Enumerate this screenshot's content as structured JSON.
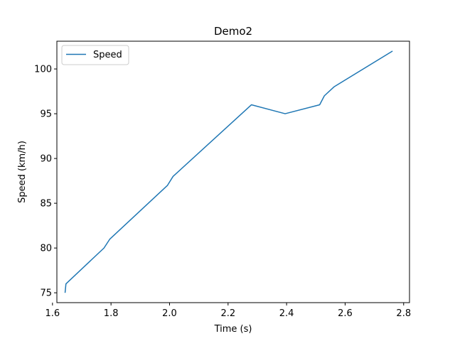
{
  "chart_data": {
    "type": "line",
    "title": "Demo2",
    "xlabel": "Time (s)",
    "ylabel": "Speed (km/h)",
    "xlim": [
      1.615,
      2.82
    ],
    "ylim": [
      73.9,
      103.1
    ],
    "xticks": [
      1.6,
      1.8,
      2.0,
      2.2,
      2.4,
      2.6,
      2.8
    ],
    "xtick_labels": [
      "1.6",
      "1.8",
      "2.0",
      "2.2",
      "2.4",
      "2.6",
      "2.8"
    ],
    "yticks": [
      75,
      80,
      85,
      90,
      95,
      100
    ],
    "ytick_labels": [
      "75",
      "80",
      "85",
      "90",
      "95",
      "100"
    ],
    "grid": false,
    "legend": "upper-left",
    "series": [
      {
        "name": "Speed",
        "color": "#1f77b4",
        "x": [
          1.643,
          1.646,
          1.776,
          1.796,
          1.993,
          2.012,
          2.28,
          2.395,
          2.513,
          2.529,
          2.562,
          2.762
        ],
        "y": [
          75,
          76,
          80,
          81,
          87,
          88,
          96,
          95,
          96,
          97,
          98,
          102
        ]
      }
    ]
  }
}
